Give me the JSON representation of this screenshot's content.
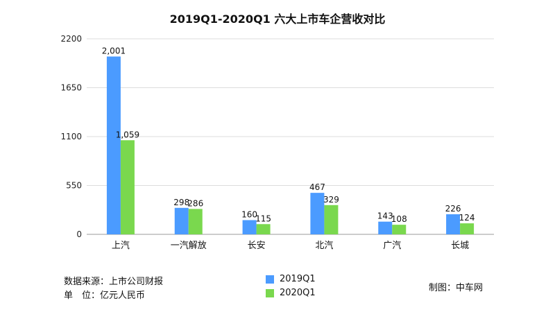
{
  "chart_data": {
    "type": "bar",
    "title": "2019Q1-2020Q1 六大上市车企营收对比",
    "categories": [
      "上汽",
      "一汽解放",
      "长安",
      "北汽",
      "广汽",
      "长城"
    ],
    "series": [
      {
        "name": "2019Q1",
        "color": "#4b9bff",
        "values": [
          2001,
          298,
          160,
          467,
          143,
          226
        ],
        "labels": [
          "2,001",
          "298",
          "160",
          "467",
          "143",
          "226"
        ]
      },
      {
        "name": "2020Q1",
        "color": "#7ad84e",
        "values": [
          1059,
          286,
          115,
          329,
          108,
          124
        ],
        "labels": [
          "1,059",
          "286",
          "115",
          "329",
          "108",
          "124"
        ]
      }
    ],
    "yticks": [
      0,
      550,
      1100,
      1650,
      2200
    ],
    "ylim": [
      0,
      2200
    ],
    "grid": true,
    "legend": "bottom-center"
  },
  "footer": {
    "source": "数据来源：上市公司财报",
    "unit": "单　位：亿元人民币",
    "credit": "制图：中车网"
  }
}
